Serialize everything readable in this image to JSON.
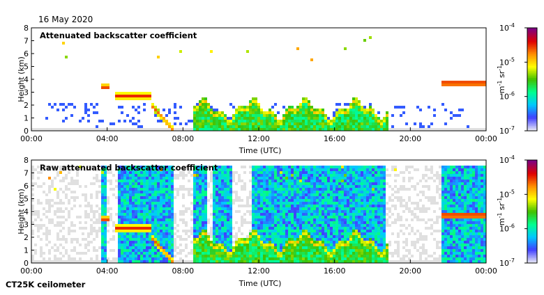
{
  "header": {
    "date": "16 May 2020"
  },
  "footer": {
    "instrument": "CT25K ceilometer"
  },
  "colorbar": {
    "unit_main": "m",
    "unit_exp1": "-1",
    "unit_mid": " sr",
    "unit_exp2": "-1",
    "ticks": [
      {
        "base": "10",
        "exp": "-4",
        "value": 0.0001
      },
      {
        "base": "10",
        "exp": "-5",
        "value": 1e-05
      },
      {
        "base": "10",
        "exp": "-6",
        "value": 1e-06
      },
      {
        "base": "10",
        "exp": "-7",
        "value": 1e-07
      }
    ],
    "stops": [
      "#e6e6f6",
      "#4040ff",
      "#00c8ff",
      "#00ff90",
      "#40c000",
      "#ffff00",
      "#ff9000",
      "#e00000",
      "#800080"
    ]
  },
  "chart_data": [
    {
      "type": "heatmap",
      "title": "Attenuated backscatter coefficient",
      "xlabel": "Time (UTC)",
      "ylabel": "Height (km)",
      "xlim": [
        0,
        24
      ],
      "ylim": [
        0,
        8
      ],
      "x_ticks": [
        "00:00",
        "04:00",
        "08:00",
        "12:00",
        "16:00",
        "20:00",
        "00:00"
      ],
      "y_ticks": [
        "0",
        "1",
        "2",
        "3",
        "4",
        "5",
        "6",
        "7",
        "8"
      ],
      "colorscale": "log",
      "clim": [
        1e-07,
        0.0001
      ],
      "features": [
        {
          "name": "aerosol layer",
          "time_start": 4.4,
          "time_end": 6.2,
          "height_km": 2.8,
          "level": 0.85
        },
        {
          "name": "descending layer",
          "time_start": 6.2,
          "time_end": 7.4,
          "height_km_start": 2.2,
          "height_km_end": 0.2,
          "level": 0.8
        },
        {
          "name": "boundary layer top",
          "time_start": 8.5,
          "time_end": 18.8,
          "height_km": 2.2,
          "level": 0.7
        },
        {
          "name": "elevated clouds",
          "time_start": 21.5,
          "time_end": 24,
          "height_km": 3.8,
          "level": 0.9
        },
        {
          "name": "cloud at 4 km",
          "time_start": 3.6,
          "time_end": 4.0,
          "height_km": 3.5,
          "level": 0.85
        },
        {
          "name": "high cloud fragments",
          "time_start": 0.7,
          "time_end": 19.3,
          "height_km": 6.5,
          "level": 0.75
        }
      ]
    },
    {
      "type": "heatmap",
      "title": "Raw attenuated backscatter coefficient",
      "xlabel": "Time (UTC)",
      "ylabel": "Height (km)",
      "xlim": [
        0,
        24
      ],
      "ylim": [
        0,
        8
      ],
      "x_ticks": [
        "00:00",
        "04:00",
        "08:00",
        "12:00",
        "16:00",
        "20:00",
        "00:00"
      ],
      "y_ticks": [
        "0",
        "1",
        "2",
        "3",
        "4",
        "5",
        "6",
        "7",
        "8"
      ],
      "colorscale": "log",
      "clim": [
        1e-07,
        0.0001
      ],
      "noisy_periods": [
        {
          "time_start": 3.6,
          "time_end": 3.9
        },
        {
          "time_start": 4.5,
          "time_end": 7.4
        },
        {
          "time_start": 8.4,
          "time_end": 9.2
        },
        {
          "time_start": 9.5,
          "time_end": 10.6
        },
        {
          "time_start": 11.6,
          "time_end": 18.6
        },
        {
          "time_start": 21.5,
          "time_end": 24
        }
      ]
    }
  ]
}
